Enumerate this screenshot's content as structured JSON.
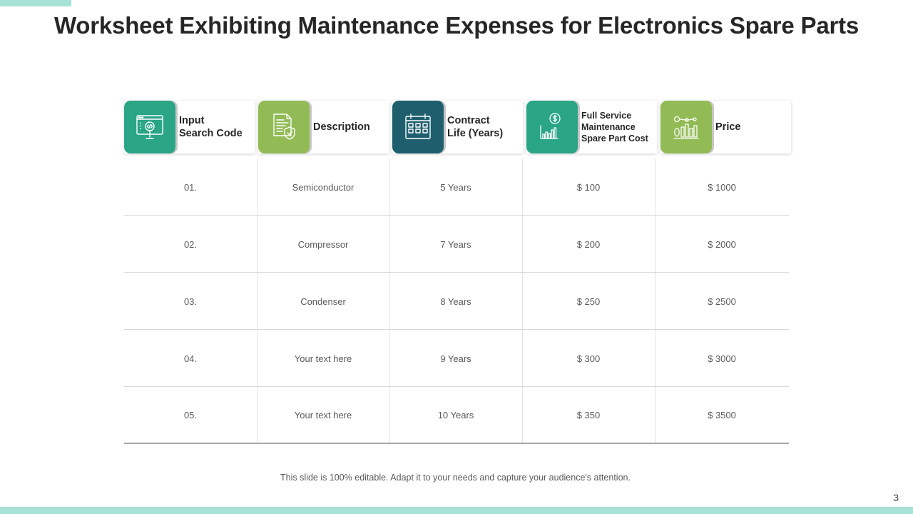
{
  "slide": {
    "title": "Worksheet Exhibiting Maintenance Expenses for Electronics Spare Parts",
    "footer_note": "This slide is 100% editable. Adapt it to your needs and capture your audience's attention.",
    "page_number": "3"
  },
  "colors": {
    "accent_band": "#a6e2d6",
    "teal": "#2aa586",
    "green": "#92bb55",
    "dark_teal": "#1f5f6d"
  },
  "columns": [
    {
      "label": "Input\nSearch Code",
      "icon": "code-search-icon",
      "color": "#2aa586"
    },
    {
      "label": "Description",
      "icon": "document-shield-icon",
      "color": "#92bb55"
    },
    {
      "label": "Contract\n Life (Years)",
      "icon": "calendar-icon",
      "color": "#1f5f6d"
    },
    {
      "label": "Full Service\nMaintenance\nSpare Part Cost",
      "icon": "dollar-chart-icon",
      "color": "#2aa586"
    },
    {
      "label": "Price",
      "icon": "money-growth-icon",
      "color": "#92bb55"
    }
  ],
  "rows": [
    [
      "01.",
      "Semiconductor",
      "5 Years",
      "$ 100",
      "$ 1000"
    ],
    [
      "02.",
      "Compressor",
      "7 Years",
      "$ 200",
      "$ 2000"
    ],
    [
      "03.",
      "Condenser",
      "8 Years",
      "$ 250",
      "$ 2500"
    ],
    [
      "04.",
      "Your text here",
      "9 Years",
      "$ 300",
      "$ 3000"
    ],
    [
      "05.",
      "Your text here",
      "10 Years",
      "$ 350",
      "$ 3500"
    ]
  ]
}
